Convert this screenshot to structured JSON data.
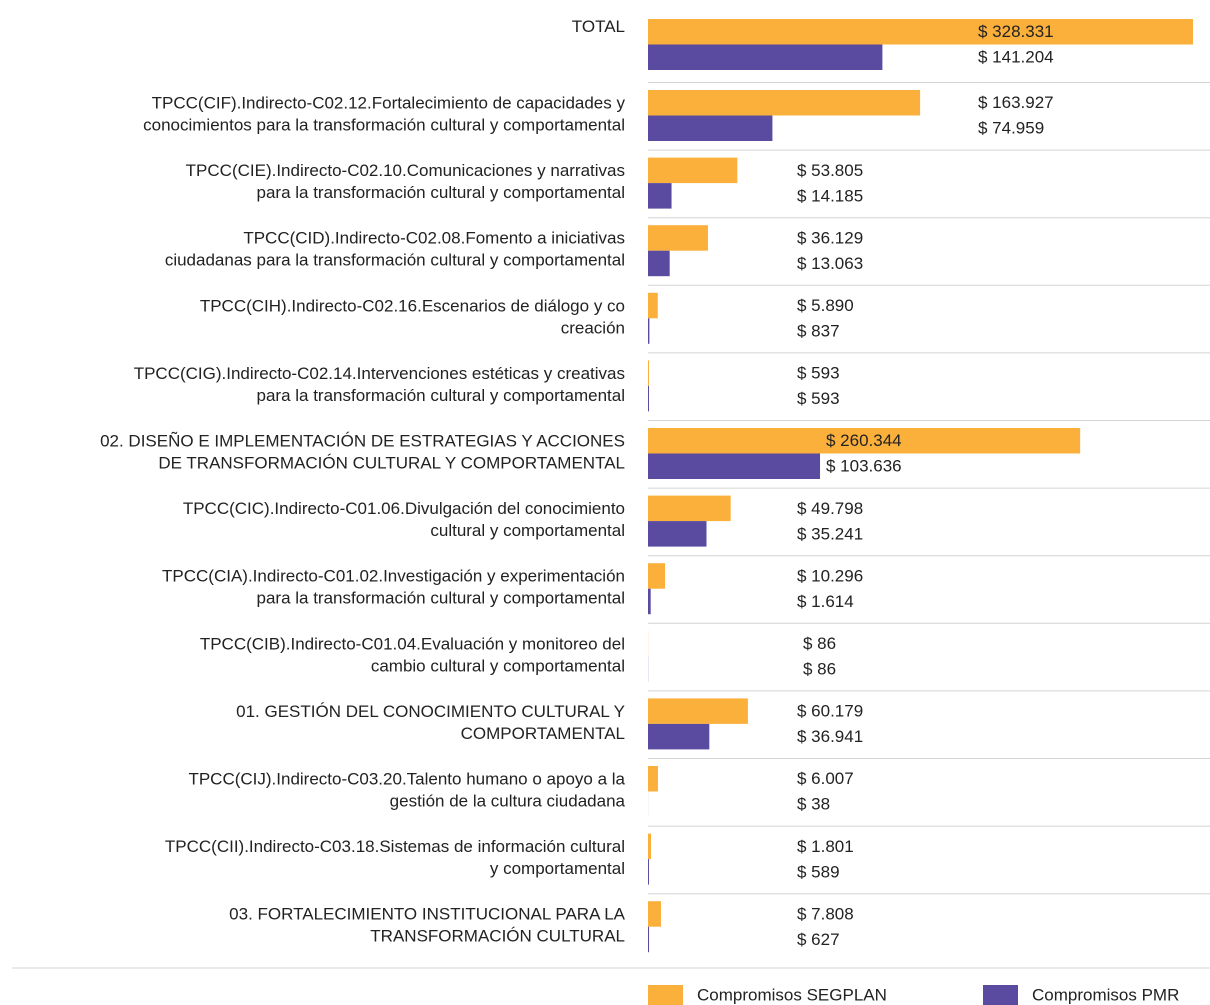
{
  "chart_data": {
    "type": "hbar",
    "categories": [
      "TOTAL",
      "TPCC(CIF).Indirecto-C02.12.Fortalecimiento de capacidades y\nconocimientos para la transformación cultural y comportamental",
      "TPCC(CIE).Indirecto-C02.10.Comunicaciones y narrativas\npara la transformación cultural y comportamental",
      "TPCC(CID).Indirecto-C02.08.Fomento a iniciativas\nciudadanas para la transformación cultural y comportamental",
      "TPCC(CIH).Indirecto-C02.16.Escenarios de diálogo y co\ncreación",
      "TPCC(CIG).Indirecto-C02.14.Intervenciones estéticas y creativas\npara la transformación cultural y comportamental",
      "02. DISEÑO E IMPLEMENTACIÓN DE ESTRATEGIAS Y ACCIONES\nDE TRANSFORMACIÓN CULTURAL Y COMPORTAMENTAL",
      "TPCC(CIC).Indirecto-C01.06.Divulgación del conocimiento\ncultural y comportamental",
      "TPCC(CIA).Indirecto-C01.02.Investigación y experimentación\npara la transformación cultural y comportamental",
      "TPCC(CIB).Indirecto-C01.04.Evaluación y monitoreo del\ncambio cultural y comportamental",
      "01. GESTIÓN DEL CONOCIMIENTO CULTURAL Y\nCOMPORTAMENTAL",
      "TPCC(CIJ).Indirecto-C03.20.Talento humano o apoyo a la\ngestión de la cultura ciudadana",
      "TPCC(CII).Indirecto-C03.18.Sistemas de información cultural\ny comportamental",
      "03. FORTALECIMIENTO INSTITUCIONAL PARA LA\nTRANSFORMACIÓN CULTURAL"
    ],
    "series": [
      {
        "name": "Compromisos SEGPLAN",
        "color": "#fbb03b",
        "values": [
          328331,
          163927,
          53805,
          36129,
          5890,
          593,
          260344,
          49798,
          10296,
          86,
          60179,
          6007,
          1801,
          7808
        ],
        "value_labels": [
          "$ 328.331",
          "$ 163.927",
          "$ 53.805",
          "$ 36.129",
          "$ 5.890",
          "$ 593",
          "$ 260.344",
          "$ 49.798",
          "$ 10.296",
          "$ 86",
          "$ 60.179",
          "$ 6.007",
          "$ 1.801",
          "$ 7.808"
        ]
      },
      {
        "name": "Compromisos PMR",
        "color": "#5a4aa0",
        "values": [
          141204,
          74959,
          14185,
          13063,
          837,
          593,
          103636,
          35241,
          1614,
          86,
          36941,
          38,
          589,
          627
        ],
        "value_labels": [
          "$ 141.204",
          "$ 74.959",
          "$ 14.185",
          "$ 13.063",
          "$ 837",
          "$ 593",
          "$ 103.636",
          "$ 35.241",
          "$ 1.614",
          "$ 86",
          "$ 36.941",
          "$ 38",
          "$ 589",
          "$ 627"
        ]
      }
    ],
    "legend": "bottom"
  }
}
